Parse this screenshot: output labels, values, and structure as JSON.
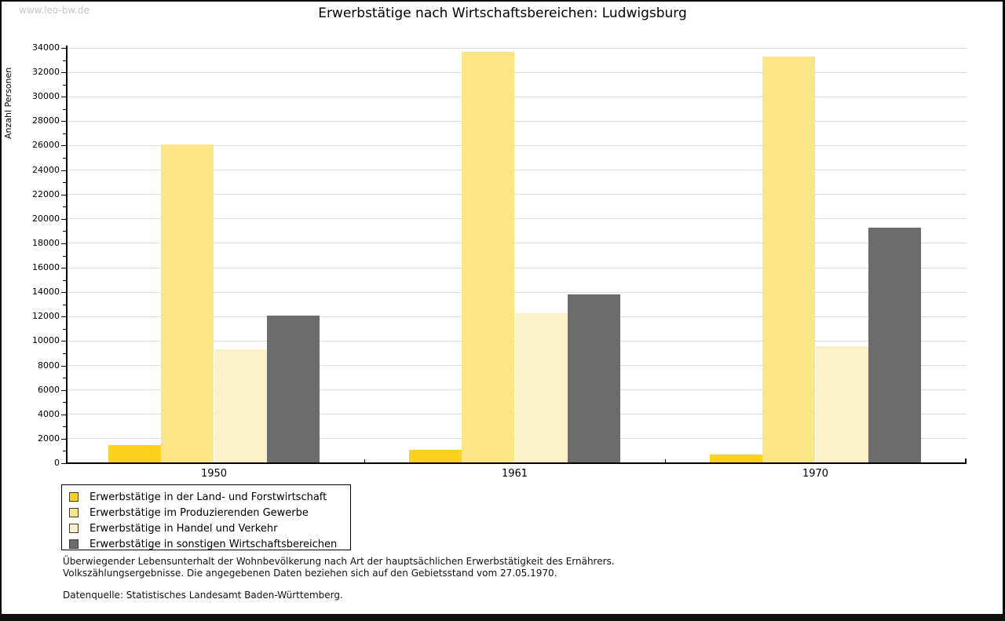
{
  "watermark": "www.leo-bw.de",
  "title": "Erwerbstätige nach Wirtschaftsbereichen: Ludwigsburg",
  "chart_data": {
    "type": "bar",
    "title": "Erwerbstätige nach Wirtschaftsbereichen: Ludwigsburg",
    "ylabel": "Anzahl Personen",
    "xlabel": "",
    "categories": [
      "1950",
      "1961",
      "1970"
    ],
    "series": [
      {
        "name": "Erwerbstätige in der Land- und Forstwirtschaft",
        "color": "#FCD120",
        "values": [
          1500,
          1100,
          700
        ]
      },
      {
        "name": "Erwerbstätige im Produzierenden Gewerbe",
        "color": "#FAE587",
        "values": [
          26100,
          33700,
          33300
        ]
      },
      {
        "name": "Erwerbstätige in Handel und Verkehr",
        "color": "#FBF1C6",
        "values": [
          9300,
          12300,
          9600
        ]
      },
      {
        "name": "Erwerbstätige in sonstigen Wirtschaftsbereichen",
        "color": "#6C6C6C",
        "values": [
          12100,
          13800,
          19300
        ]
      }
    ],
    "ylim": [
      0,
      34000
    ],
    "y_major_step": 2000,
    "y_minor_step": 1000,
    "grid": true,
    "legend_position": "bottom-left"
  },
  "notes": {
    "line1": "Überwiegender Lebensunterhalt der Wohnbevölkerung nach Art der hauptsächlichen Erwerbstätigkeit des Ernährers.",
    "line2": "Volkszählungsergebnisse. Die angegebenen Daten beziehen sich auf den Gebietsstand vom 27.05.1970.",
    "source": "Datenquelle: Statistisches Landesamt Baden-Württemberg."
  },
  "colors": {
    "grid": "#DCDCDC",
    "axis": "#000000",
    "watermark": "#C6C6C6"
  }
}
